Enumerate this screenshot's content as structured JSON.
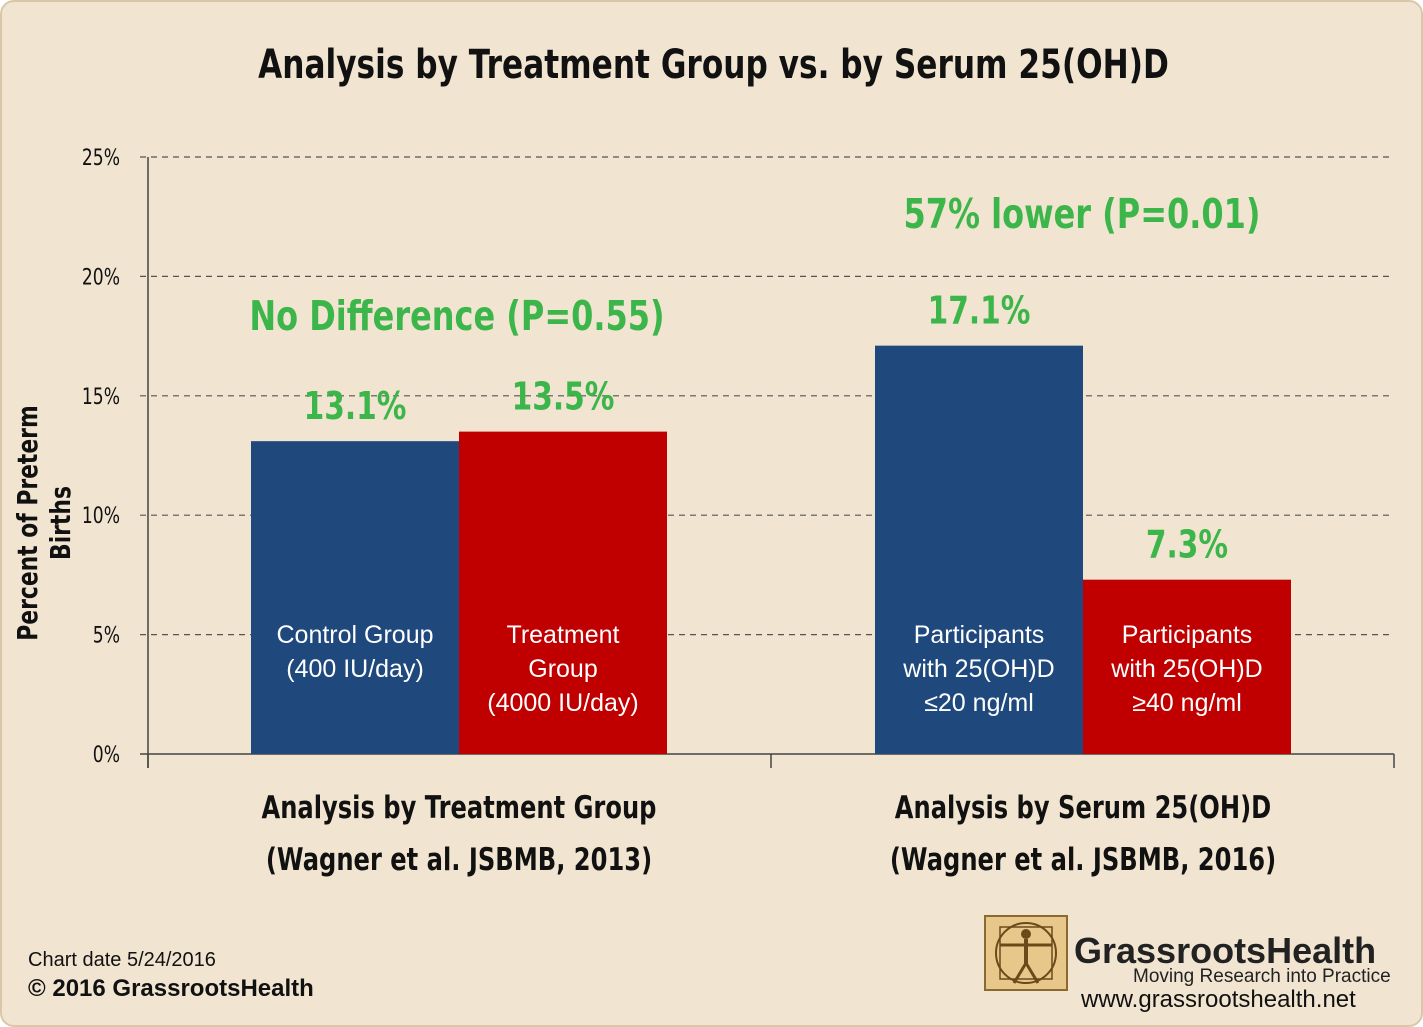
{
  "title": "Analysis by Treatment Group vs. by Serum 25(OH)D",
  "chart_data": {
    "type": "bar",
    "ylabel": "Percent of Preterm Births",
    "ylim": [
      0,
      25
    ],
    "yticks": [
      "0%",
      "5%",
      "10%",
      "15%",
      "20%",
      "25%"
    ],
    "grid": "dashed horizontal",
    "groups": [
      {
        "label_line1": "Analysis by Treatment Group",
        "label_line2": "(Wagner et al. JSBMB, 2013)",
        "annotation": "No Difference (P=0.55)",
        "bars": [
          {
            "label": [
              "Control Group",
              "(400 IU/day)"
            ],
            "value": 13.1,
            "value_label": "13.1%",
            "color": "#1f497d"
          },
          {
            "label": [
              "Treatment",
              "Group",
              "(4000 IU/day)"
            ],
            "value": 13.5,
            "value_label": "13.5%",
            "color": "#c00000"
          }
        ]
      },
      {
        "label_line1": "Analysis by Serum 25(OH)D",
        "label_line2": "(Wagner et al. JSBMB, 2016)",
        "annotation": "57% lower (P=0.01)",
        "bars": [
          {
            "label": [
              "Participants",
              "with 25(OH)D",
              "≤20 ng/ml"
            ],
            "value": 17.1,
            "value_label": "17.1%",
            "color": "#1f497d"
          },
          {
            "label": [
              "Participants",
              "with 25(OH)D",
              "≥40 ng/ml"
            ],
            "value": 7.3,
            "value_label": "7.3%",
            "color": "#c00000"
          }
        ]
      }
    ],
    "annotation_color": "#3cb54a"
  },
  "footer": {
    "chart_date": "Chart date 5/24/2016",
    "copyright": "© 2016 GrassrootsHealth"
  },
  "logo": {
    "name": "GrassrootsHealth",
    "tagline": "Moving Research into Practice",
    "url": "www.grassrootshealth.net"
  }
}
